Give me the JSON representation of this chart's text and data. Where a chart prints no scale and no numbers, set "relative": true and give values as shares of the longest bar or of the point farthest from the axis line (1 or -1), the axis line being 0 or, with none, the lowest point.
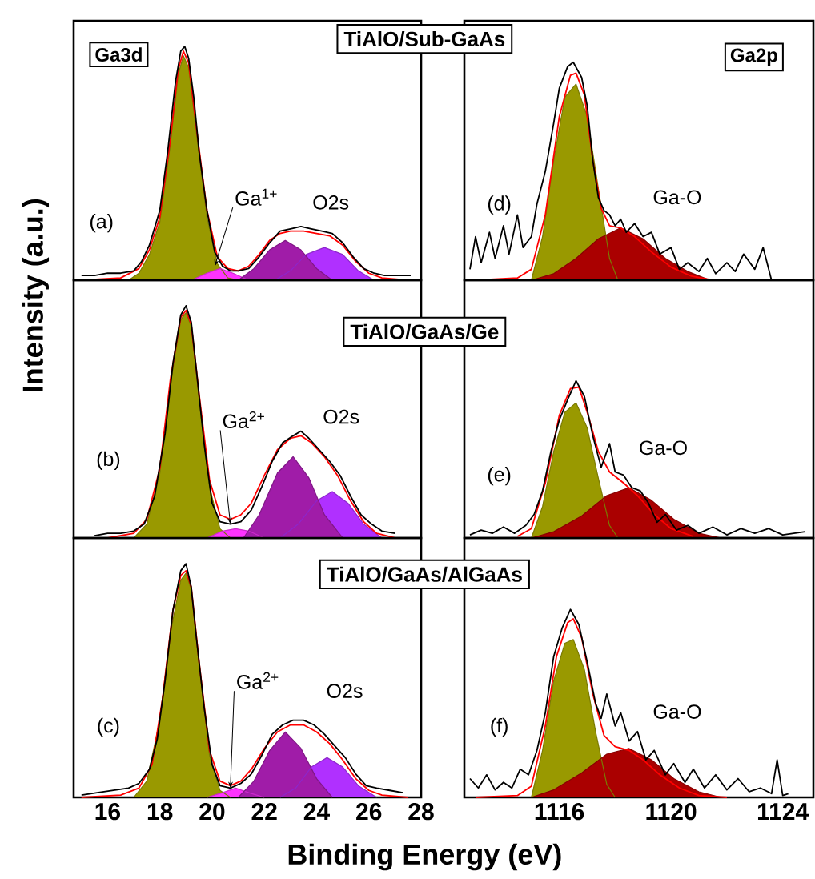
{
  "chart_data": [
    {
      "type": "area",
      "title": "TiAlO/Sub-GaAs",
      "relative": true,
      "xlim": [
        14.7,
        28
      ],
      "xticks": [
        16,
        18,
        20,
        22,
        24,
        26,
        28
      ],
      "tick_labels": false,
      "annotations": [
        "Ga3d",
        "(a)",
        "Ga$^{1+}$",
        "O2s"
      ],
      "series": [
        {
          "type": "area",
          "color": "#999900",
          "x": [
            16.8,
            17.2,
            17.6,
            18.0,
            18.4,
            18.7,
            18.9,
            19.1,
            19.4,
            19.8,
            20.2,
            20.6,
            21.0
          ],
          "values": [
            0,
            0.03,
            0.11,
            0.25,
            0.58,
            0.88,
            0.96,
            0.91,
            0.63,
            0.27,
            0.07,
            0.01,
            0
          ]
        },
        {
          "type": "area",
          "color": "#ff33ff",
          "x": [
            19.2,
            19.8,
            20.3,
            20.8,
            21.4
          ],
          "values": [
            0,
            0.03,
            0.05,
            0.03,
            0
          ]
        },
        {
          "type": "area",
          "color": "#b030ff",
          "x": [
            22.4,
            23.0,
            23.6,
            24.3,
            25.0,
            25.6,
            26.2
          ],
          "values": [
            0,
            0.04,
            0.11,
            0.14,
            0.11,
            0.04,
            0
          ]
        },
        {
          "type": "area",
          "color": "#a01ca8",
          "x": [
            21.0,
            21.6,
            22.2,
            22.8,
            23.4,
            24.0,
            24.6
          ],
          "values": [
            0,
            0.05,
            0.13,
            0.17,
            0.13,
            0.05,
            0
          ]
        },
        {
          "type": "line",
          "color": "#ff0000",
          "x": [
            15,
            16.5,
            17.2,
            17.6,
            18,
            18.4,
            18.7,
            18.9,
            19.1,
            19.4,
            19.8,
            20.2,
            20.6,
            21.0,
            21.4,
            21.8,
            22.2,
            22.6,
            23.0,
            23.5,
            24.0,
            24.5,
            25.0,
            25.5,
            26.0,
            26.5,
            27.5
          ],
          "values": [
            0,
            0.01,
            0.05,
            0.13,
            0.27,
            0.6,
            0.9,
            0.98,
            0.93,
            0.65,
            0.3,
            0.1,
            0.05,
            0.04,
            0.06,
            0.11,
            0.17,
            0.2,
            0.21,
            0.21,
            0.2,
            0.19,
            0.15,
            0.08,
            0.03,
            0.01,
            0
          ]
        },
        {
          "type": "line",
          "color": "#000000",
          "x": [
            15.0,
            15.5,
            16.0,
            16.5,
            17.0,
            17.3,
            17.6,
            18.0,
            18.3,
            18.6,
            18.8,
            18.95,
            19.1,
            19.3,
            19.5,
            19.8,
            20.1,
            20.4,
            20.7,
            21.0,
            21.4,
            21.8,
            22.2,
            22.6,
            23.0,
            23.4,
            23.8,
            24.2,
            24.6,
            25.0,
            25.4,
            25.8,
            26.2,
            26.6,
            27.0,
            27.6
          ],
          "values": [
            0.02,
            0.02,
            0.03,
            0.03,
            0.04,
            0.08,
            0.15,
            0.3,
            0.55,
            0.85,
            0.98,
            1.0,
            0.95,
            0.78,
            0.55,
            0.3,
            0.12,
            0.06,
            0.04,
            0.04,
            0.05,
            0.1,
            0.16,
            0.21,
            0.22,
            0.23,
            0.22,
            0.21,
            0.2,
            0.16,
            0.1,
            0.05,
            0.03,
            0.02,
            0.02,
            0.02
          ]
        }
      ]
    },
    {
      "type": "area",
      "relative": true,
      "xlim": [
        1112.6,
        1125.1
      ],
      "xticks": [
        1116,
        1120,
        1124
      ],
      "tick_labels": false,
      "annotations": [
        "Ga2p",
        "(d)",
        "Ga-O"
      ],
      "series": [
        {
          "type": "area",
          "color": "#999900",
          "x": [
            1115.0,
            1115.4,
            1115.8,
            1116.2,
            1116.6,
            1117.0,
            1117.4,
            1117.8,
            1118.1
          ],
          "values": [
            0,
            0.2,
            0.55,
            0.84,
            0.9,
            0.75,
            0.42,
            0.1,
            0
          ]
        },
        {
          "type": "area",
          "color": "#aa0000",
          "x": [
            1115.0,
            1115.8,
            1116.6,
            1117.4,
            1118.2,
            1119.0,
            1119.8,
            1120.6,
            1121.4
          ],
          "values": [
            0,
            0.03,
            0.1,
            0.19,
            0.24,
            0.19,
            0.1,
            0.04,
            0
          ]
        },
        {
          "type": "line",
          "color": "#ff0000",
          "x": [
            1113,
            1114.5,
            1115.0,
            1115.5,
            1116.0,
            1116.4,
            1116.6,
            1116.9,
            1117.2,
            1117.5,
            1117.8,
            1118.2,
            1118.7,
            1119.3,
            1120.0,
            1120.7,
            1121.5,
            1124.2
          ],
          "values": [
            0,
            0.01,
            0.05,
            0.3,
            0.75,
            0.94,
            0.95,
            0.85,
            0.55,
            0.33,
            0.25,
            0.24,
            0.2,
            0.13,
            0.06,
            0.02,
            0,
            0
          ]
        },
        {
          "type": "line",
          "color": "#000000",
          "x": [
            1112.8,
            1113.0,
            1113.2,
            1113.5,
            1113.7,
            1114.0,
            1114.2,
            1114.5,
            1114.7,
            1115.0,
            1115.2,
            1115.5,
            1115.8,
            1116.0,
            1116.3,
            1116.5,
            1116.8,
            1117.0,
            1117.2,
            1117.4,
            1117.6,
            1117.8,
            1118.0,
            1118.2,
            1118.4,
            1118.7,
            1119.0,
            1119.3,
            1119.6,
            1120.0,
            1120.3,
            1120.6,
            1121.0,
            1121.3,
            1121.6,
            1122.0,
            1122.3,
            1122.6,
            1123.0,
            1123.3,
            1123.6,
            1124.2
          ],
          "values": [
            0.05,
            0.2,
            0.08,
            0.22,
            0.1,
            0.25,
            0.12,
            0.3,
            0.15,
            0.2,
            0.35,
            0.5,
            0.72,
            0.88,
            0.98,
            1.0,
            0.93,
            0.8,
            0.55,
            0.38,
            0.32,
            0.3,
            0.25,
            0.28,
            0.22,
            0.26,
            0.2,
            0.22,
            0.12,
            0.15,
            0.05,
            0.08,
            0.04,
            0.1,
            0.03,
            0.08,
            0.04,
            0.12,
            0.05,
            0.15,
            0.0,
            0
          ]
        }
      ]
    },
    {
      "type": "area",
      "title": "TiAlO/GaAs/Ge",
      "ylabel": "Intensity (a.u.)",
      "relative": true,
      "xlim": [
        14.7,
        28
      ],
      "xticks": [
        16,
        18,
        20,
        22,
        24,
        26,
        28
      ],
      "tick_labels": false,
      "annotations": [
        "(b)",
        "Ga$^{2+}$",
        "O2s"
      ],
      "series": [
        {
          "type": "area",
          "color": "#999900",
          "x": [
            17.0,
            17.5,
            18.0,
            18.4,
            18.8,
            19.0,
            19.2,
            19.5,
            19.9,
            20.3,
            20.7
          ],
          "values": [
            0,
            0.06,
            0.28,
            0.66,
            0.94,
            0.97,
            0.91,
            0.6,
            0.22,
            0.04,
            0
          ]
        },
        {
          "type": "area",
          "color": "#ff33ff",
          "x": [
            19.8,
            20.4,
            20.9,
            21.4,
            22.0
          ],
          "values": [
            0,
            0.03,
            0.04,
            0.03,
            0
          ]
        },
        {
          "type": "area",
          "color": "#b030ff",
          "x": [
            22.6,
            23.3,
            24.0,
            24.6,
            25.2,
            25.8,
            26.5
          ],
          "values": [
            0,
            0.06,
            0.16,
            0.2,
            0.15,
            0.06,
            0
          ]
        },
        {
          "type": "area",
          "color": "#a01ca8",
          "x": [
            21.2,
            21.8,
            22.5,
            23.1,
            23.7,
            24.3,
            25.0
          ],
          "values": [
            0,
            0.1,
            0.28,
            0.35,
            0.26,
            0.1,
            0
          ]
        },
        {
          "type": "line",
          "color": "#ff0000",
          "x": [
            16,
            17.0,
            17.5,
            18.0,
            18.4,
            18.8,
            19.0,
            19.2,
            19.5,
            19.9,
            20.3,
            20.7,
            21.1,
            21.5,
            22.0,
            22.5,
            23.0,
            23.4,
            23.8,
            24.3,
            24.8,
            25.3,
            25.8,
            26.3,
            27
          ],
          "values": [
            0,
            0.02,
            0.08,
            0.3,
            0.68,
            0.95,
            0.98,
            0.92,
            0.62,
            0.25,
            0.1,
            0.08,
            0.1,
            0.15,
            0.27,
            0.38,
            0.43,
            0.44,
            0.41,
            0.35,
            0.27,
            0.16,
            0.07,
            0.02,
            0
          ]
        },
        {
          "type": "line",
          "color": "#000000",
          "x": [
            15.5,
            16.0,
            16.5,
            17.0,
            17.4,
            17.8,
            18.2,
            18.5,
            18.8,
            19.0,
            19.2,
            19.4,
            19.7,
            20.0,
            20.3,
            20.7,
            21.1,
            21.5,
            21.9,
            22.3,
            22.7,
            23.1,
            23.4,
            23.7,
            24.1,
            24.5,
            24.9,
            25.3,
            25.7,
            26.1,
            26.5,
            27.0
          ],
          "values": [
            0.01,
            0.02,
            0.02,
            0.03,
            0.06,
            0.18,
            0.45,
            0.75,
            0.96,
            1.0,
            0.93,
            0.72,
            0.4,
            0.15,
            0.07,
            0.06,
            0.07,
            0.12,
            0.22,
            0.33,
            0.41,
            0.44,
            0.46,
            0.43,
            0.38,
            0.33,
            0.27,
            0.18,
            0.1,
            0.06,
            0.03,
            0.02
          ]
        }
      ]
    },
    {
      "type": "area",
      "relative": true,
      "xlim": [
        1112.6,
        1125.1
      ],
      "xticks": [
        1116,
        1120,
        1124
      ],
      "tick_labels": false,
      "annotations": [
        "(e)",
        "Ga-O"
      ],
      "series": [
        {
          "type": "area",
          "color": "#999900",
          "x": [
            1115.0,
            1115.4,
            1115.8,
            1116.2,
            1116.6,
            1117.0,
            1117.4,
            1117.8,
            1118.1
          ],
          "values": [
            0,
            0.2,
            0.55,
            0.8,
            0.86,
            0.7,
            0.38,
            0.08,
            0
          ]
        },
        {
          "type": "area",
          "color": "#aa0000",
          "x": [
            1115.0,
            1115.8,
            1116.8,
            1117.7,
            1118.5,
            1119.3,
            1120.1,
            1121.0,
            1121.8
          ],
          "values": [
            0,
            0.04,
            0.14,
            0.27,
            0.32,
            0.24,
            0.12,
            0.03,
            0
          ]
        },
        {
          "type": "line",
          "color": "#ff0000",
          "x": [
            1114.5,
            1115.0,
            1115.5,
            1116.0,
            1116.4,
            1116.7,
            1117.0,
            1117.4,
            1117.8,
            1118.3,
            1118.8,
            1119.4,
            1120.0,
            1120.8
          ],
          "values": [
            0.01,
            0.06,
            0.35,
            0.78,
            0.95,
            0.96,
            0.8,
            0.55,
            0.42,
            0.35,
            0.27,
            0.15,
            0.06,
            0.01
          ]
        },
        {
          "type": "line",
          "color": "#000000",
          "x": [
            1112.8,
            1113.2,
            1113.6,
            1114.0,
            1114.4,
            1114.8,
            1115.1,
            1115.4,
            1115.7,
            1116.0,
            1116.3,
            1116.6,
            1116.9,
            1117.2,
            1117.5,
            1117.8,
            1118.0,
            1118.3,
            1118.6,
            1118.9,
            1119.2,
            1119.5,
            1119.8,
            1120.2,
            1120.6,
            1121.0,
            1121.5,
            1122.0,
            1122.5,
            1123.0,
            1123.5,
            1124.0,
            1124.8
          ],
          "values": [
            0.02,
            0.05,
            0.03,
            0.07,
            0.03,
            0.08,
            0.15,
            0.3,
            0.55,
            0.75,
            0.88,
            1.0,
            0.9,
            0.65,
            0.45,
            0.6,
            0.42,
            0.4,
            0.32,
            0.3,
            0.22,
            0.1,
            0.15,
            0.05,
            0.08,
            0.03,
            0.07,
            0.02,
            0.06,
            0.03,
            0.06,
            0.02,
            0.04
          ]
        }
      ]
    },
    {
      "type": "area",
      "title": "TiAlO/GaAs/AlGaAs",
      "xlabel": "Binding Energy (eV)",
      "relative": true,
      "xlim": [
        14.7,
        28
      ],
      "xticks": [
        16,
        18,
        20,
        22,
        24,
        26,
        28
      ],
      "tick_labels": "x",
      "annotations": [
        "(c)",
        "Ga$^{2+}$",
        "O2s"
      ],
      "series": [
        {
          "type": "area",
          "color": "#999900",
          "x": [
            17.0,
            17.5,
            18.0,
            18.4,
            18.8,
            19.0,
            19.2,
            19.5,
            19.9,
            20.3,
            20.7
          ],
          "values": [
            0,
            0.07,
            0.33,
            0.7,
            0.93,
            0.96,
            0.89,
            0.57,
            0.18,
            0.03,
            0
          ]
        },
        {
          "type": "area",
          "color": "#ff33ff",
          "x": [
            19.8,
            20.4,
            20.9,
            21.4,
            22.0
          ],
          "values": [
            0,
            0.02,
            0.04,
            0.02,
            0
          ]
        },
        {
          "type": "area",
          "color": "#b030ff",
          "x": [
            22.6,
            23.2,
            23.8,
            24.4,
            25.0,
            25.6,
            26.3
          ],
          "values": [
            0,
            0.04,
            0.13,
            0.17,
            0.13,
            0.05,
            0
          ]
        },
        {
          "type": "area",
          "color": "#a01ca8",
          "x": [
            21.0,
            21.6,
            22.2,
            22.8,
            23.4,
            24.0,
            24.6
          ],
          "values": [
            0,
            0.07,
            0.2,
            0.28,
            0.21,
            0.08,
            0
          ]
        },
        {
          "type": "line",
          "color": "#ff0000",
          "x": [
            15,
            16.5,
            17.2,
            17.7,
            18.1,
            18.5,
            18.8,
            19.0,
            19.2,
            19.5,
            19.9,
            20.3,
            20.7,
            21.1,
            21.5,
            22.0,
            22.5,
            23.0,
            23.5,
            24.0,
            24.5,
            25.0,
            25.5,
            26.0,
            26.5,
            27.5
          ],
          "values": [
            0,
            0.01,
            0.04,
            0.14,
            0.42,
            0.8,
            0.95,
            0.97,
            0.9,
            0.58,
            0.2,
            0.07,
            0.05,
            0.07,
            0.12,
            0.21,
            0.28,
            0.31,
            0.31,
            0.28,
            0.23,
            0.16,
            0.08,
            0.03,
            0.01,
            0
          ]
        },
        {
          "type": "line",
          "color": "#000000",
          "x": [
            15.0,
            15.6,
            16.2,
            16.8,
            17.2,
            17.6,
            17.9,
            18.2,
            18.5,
            18.8,
            19.0,
            19.2,
            19.4,
            19.7,
            20.0,
            20.3,
            20.7,
            21.1,
            21.5,
            21.9,
            22.3,
            22.7,
            23.1,
            23.5,
            23.9,
            24.3,
            24.7,
            25.1,
            25.5,
            25.9,
            26.3,
            26.8,
            27.3
          ],
          "values": [
            0.01,
            0.02,
            0.03,
            0.04,
            0.06,
            0.12,
            0.25,
            0.5,
            0.8,
            0.97,
            1.0,
            0.9,
            0.68,
            0.38,
            0.14,
            0.05,
            0.04,
            0.06,
            0.1,
            0.18,
            0.27,
            0.31,
            0.33,
            0.33,
            0.31,
            0.27,
            0.22,
            0.17,
            0.1,
            0.05,
            0.04,
            0.03,
            0.02
          ]
        }
      ]
    },
    {
      "type": "area",
      "relative": true,
      "xlim": [
        1112.6,
        1125.1
      ],
      "xticks": [
        1116,
        1120,
        1124
      ],
      "tick_labels": "x",
      "annotations": [
        "(f)",
        "Ga-O"
      ],
      "series": [
        {
          "type": "area",
          "color": "#999900",
          "x": [
            1115.0,
            1115.4,
            1115.8,
            1116.2,
            1116.5,
            1116.9,
            1117.3,
            1117.7,
            1118.0
          ],
          "values": [
            0,
            0.25,
            0.62,
            0.82,
            0.84,
            0.68,
            0.35,
            0.07,
            0
          ]
        },
        {
          "type": "area",
          "color": "#aa0000",
          "x": [
            1115.0,
            1115.8,
            1116.8,
            1117.7,
            1118.5,
            1119.3,
            1120.1,
            1121.0,
            1121.8
          ],
          "values": [
            0,
            0.04,
            0.13,
            0.23,
            0.26,
            0.2,
            0.1,
            0.03,
            0
          ]
        },
        {
          "type": "line",
          "color": "#ff0000",
          "x": [
            1113,
            1114.5,
            1115.0,
            1115.5,
            1115.9,
            1116.3,
            1116.5,
            1116.8,
            1117.2,
            1117.6,
            1118.0,
            1118.5,
            1119.0,
            1119.6,
            1120.3,
            1121.0,
            1122
          ],
          "values": [
            0,
            0.01,
            0.06,
            0.38,
            0.75,
            0.93,
            0.95,
            0.85,
            0.55,
            0.33,
            0.27,
            0.25,
            0.2,
            0.12,
            0.05,
            0.01,
            0
          ]
        },
        {
          "type": "line",
          "color": "#000000",
          "x": [
            1112.8,
            1113.1,
            1113.4,
            1113.7,
            1114.0,
            1114.3,
            1114.6,
            1114.9,
            1115.2,
            1115.5,
            1115.8,
            1116.1,
            1116.4,
            1116.7,
            1117.0,
            1117.3,
            1117.5,
            1117.7,
            1118.0,
            1118.2,
            1118.5,
            1118.8,
            1119.1,
            1119.4,
            1119.8,
            1120.1,
            1120.5,
            1120.8,
            1121.2,
            1121.6,
            1122.0,
            1122.4,
            1122.8,
            1123.2,
            1123.6,
            1123.8,
            1124.0,
            1124.2
          ],
          "values": [
            0.1,
            0.05,
            0.12,
            0.04,
            0.08,
            0.05,
            0.15,
            0.12,
            0.25,
            0.45,
            0.75,
            0.9,
            1.0,
            0.92,
            0.72,
            0.5,
            0.42,
            0.55,
            0.38,
            0.45,
            0.3,
            0.35,
            0.2,
            0.25,
            0.12,
            0.18,
            0.08,
            0.15,
            0.05,
            0.12,
            0.04,
            0.1,
            0.03,
            0.05,
            0.02,
            0.2,
            0.01,
            0.02
          ]
        }
      ]
    }
  ]
}
